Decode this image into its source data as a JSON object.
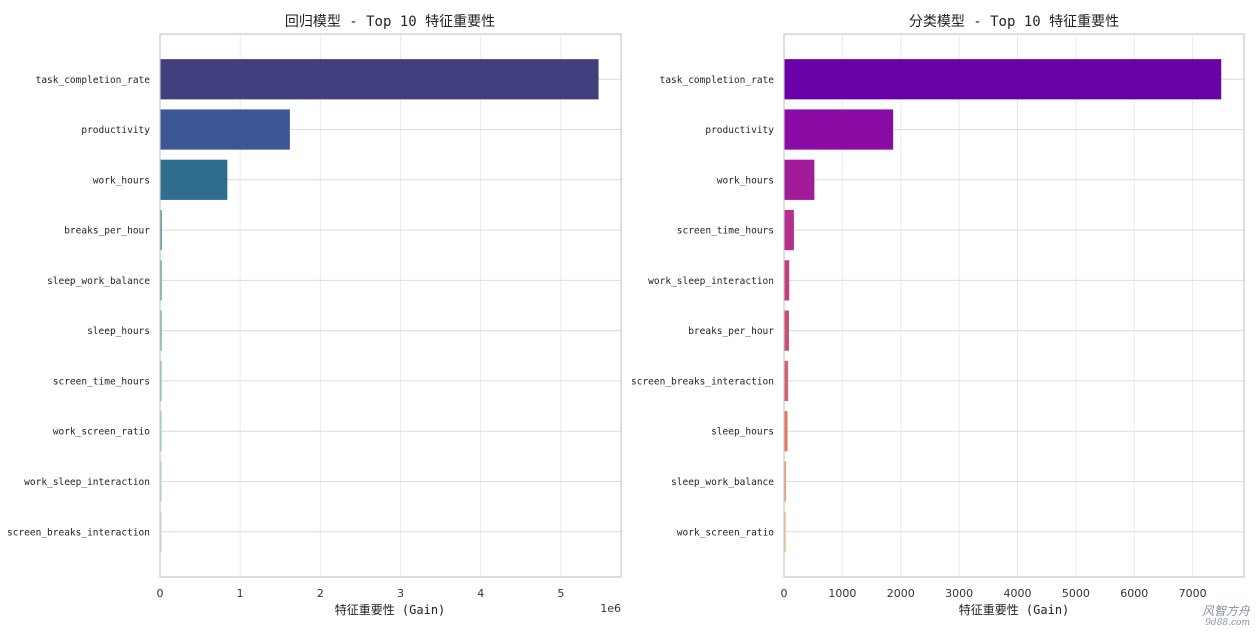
{
  "chart_data": [
    {
      "type": "bar",
      "orientation": "horizontal",
      "title": "回归模型 - Top 10 特征重要性",
      "xlabel": "特征重要性 (Gain)",
      "x_offset_label": "1e6",
      "xlim": [
        0,
        5.75
      ],
      "xticks": [
        0,
        1,
        2,
        3,
        4,
        5
      ],
      "grid": true,
      "categories": [
        "task_completion_rate",
        "productivity",
        "work_hours",
        "breaks_per_hour",
        "sleep_work_balance",
        "sleep_hours",
        "screen_time_hours",
        "work_screen_ratio",
        "work_sleep_interaction",
        "screen_breaks_interaction"
      ],
      "values": [
        5.47,
        1.62,
        0.84,
        0.022,
        0.021,
        0.02,
        0.019,
        0.012,
        0.011,
        0.01
      ],
      "colors": [
        "#413f7e",
        "#3b5894",
        "#2f6d8e",
        "#3e8896",
        "#4f9ca0",
        "#58a8a3",
        "#6ab9a9",
        "#8ac9b0",
        "#a8d6bb",
        "#c0e1c6"
      ]
    },
    {
      "type": "bar",
      "orientation": "horizontal",
      "title": "分类模型 - Top 10 特征重要性",
      "xlabel": "特征重要性 (Gain)",
      "xlim": [
        0,
        7880
      ],
      "xticks": [
        0,
        1000,
        2000,
        3000,
        4000,
        5000,
        6000,
        7000
      ],
      "grid": true,
      "categories": [
        "task_completion_rate",
        "productivity",
        "work_hours",
        "screen_time_hours",
        "work_sleep_interaction",
        "breaks_per_hour",
        "screen_breaks_interaction",
        "sleep_hours",
        "sleep_work_balance",
        "work_screen_ratio"
      ],
      "values": [
        7490,
        1870,
        520,
        170,
        90,
        85,
        70,
        60,
        35,
        30
      ],
      "colors": [
        "#6a00a8",
        "#8a0aa4",
        "#a11b9b",
        "#b42f8f",
        "#c33e80",
        "#cd4f70",
        "#d8606a",
        "#e2765d",
        "#eb9a6c",
        "#f2be87"
      ]
    }
  ],
  "watermark": {
    "line1": "风智方舟",
    "line2": "9d88.com"
  }
}
